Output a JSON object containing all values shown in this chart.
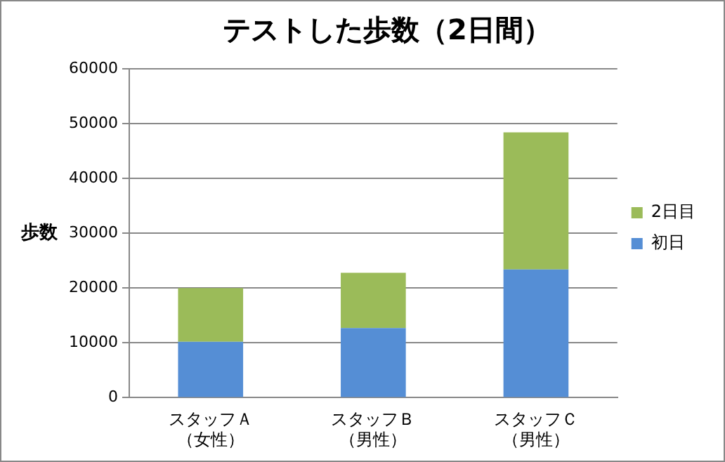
{
  "chart_data": {
    "type": "bar",
    "title": "テストした歩数（2日間）",
    "ylabel": "歩数",
    "categories": [
      "スタッフＡ（女性）",
      "スタッフＢ（男性）",
      "スタッフＣ（男性）"
    ],
    "series": [
      {
        "name": "初日",
        "color": "#558ed5",
        "values": [
          10200,
          12700,
          23400
        ]
      },
      {
        "name": "2日目",
        "color": "#9bbb59",
        "values": [
          9800,
          10100,
          25000
        ]
      }
    ],
    "stacked": true,
    "ylim": [
      0,
      60000
    ],
    "yticks": [
      0,
      10000,
      20000,
      30000,
      40000,
      50000,
      60000
    ],
    "grid": "y",
    "legend": "right"
  }
}
